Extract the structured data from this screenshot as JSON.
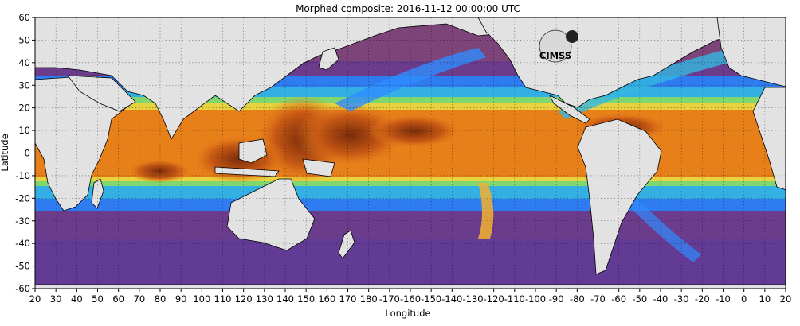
{
  "title": "Morphed composite: 2016-11-12 00:00:00 UTC",
  "x_axis": {
    "label": "Longitude",
    "ticks": [
      "20",
      "30",
      "40",
      "50",
      "60",
      "70",
      "80",
      "90",
      "100",
      "110",
      "120",
      "130",
      "140",
      "150",
      "160",
      "170",
      "180",
      "-170",
      "-160",
      "-150",
      "-140",
      "-130",
      "-120",
      "-110",
      "-100",
      "-90",
      "-80",
      "-70",
      "-60",
      "-50",
      "-40",
      "-30",
      "-20",
      "-10",
      "0",
      "10",
      "20"
    ]
  },
  "y_axis": {
    "label": "Latitude",
    "ticks": [
      "60",
      "50",
      "40",
      "30",
      "20",
      "10",
      "0",
      "-10",
      "-20",
      "-30",
      "-40",
      "-50",
      "-60"
    ]
  },
  "logo": {
    "text": "CIMSS"
  },
  "colors": {
    "land": "#e2e2e2",
    "dry": "#6a3a8a",
    "moderate": "#2f8cff",
    "wet": "#e8801a",
    "very_wet": "#8a3a10"
  }
}
